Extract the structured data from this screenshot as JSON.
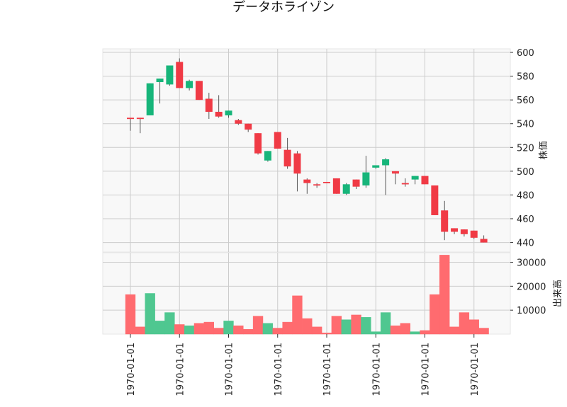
{
  "chart_data": {
    "type": "candlestick",
    "title": "データホライゾン",
    "grid": true,
    "x_tick_labels": [
      "1970-01-01",
      "1970-01-01",
      "1970-01-01",
      "1970-01-01",
      "1970-01-01",
      "1970-01-01",
      "1970-01-01",
      "1970-01-01"
    ],
    "x_tick_index": [
      0,
      5,
      10,
      15,
      20,
      25,
      30,
      35
    ],
    "price_panel": {
      "ylabel": "株価",
      "ylim": [
        432,
        603
      ],
      "yticks": [
        440,
        460,
        480,
        500,
        520,
        540,
        560,
        580,
        600
      ]
    },
    "volume_panel": {
      "ylabel": "出来高",
      "ylim": [
        0,
        34000
      ],
      "yticks": [
        10000,
        20000,
        30000
      ],
      "ytick_labels": [
        "10000",
        "20000",
        "30000"
      ]
    },
    "colors": {
      "up": "#17b57a",
      "down": "#f03a45",
      "volume_up": "#4fc790",
      "volume_down": "#ff6b6f"
    },
    "candles": [
      {
        "open": 545,
        "high": 545,
        "low": 534,
        "close": 544,
        "volume": 16500
      },
      {
        "open": 545,
        "high": 545,
        "low": 532,
        "close": 544,
        "volume": 3000
      },
      {
        "open": 547,
        "high": 574,
        "low": 547,
        "close": 574,
        "volume": 17000
      },
      {
        "open": 575,
        "high": 578,
        "low": 557,
        "close": 578,
        "volume": 5500
      },
      {
        "open": 573,
        "high": 589,
        "low": 572,
        "close": 589,
        "volume": 9000
      },
      {
        "open": 592,
        "high": 595,
        "low": 570,
        "close": 570,
        "volume": 4000
      },
      {
        "open": 570,
        "high": 577,
        "low": 568,
        "close": 576,
        "volume": 3500
      },
      {
        "open": 576,
        "high": 576,
        "low": 560,
        "close": 560,
        "volume": 4500
      },
      {
        "open": 561,
        "high": 566,
        "low": 544,
        "close": 550,
        "volume": 5000
      },
      {
        "open": 550,
        "high": 564,
        "low": 545,
        "close": 546,
        "volume": 2500
      },
      {
        "open": 547,
        "high": 551,
        "low": 545,
        "close": 551,
        "volume": 5500
      },
      {
        "open": 543,
        "high": 544,
        "low": 539,
        "close": 540,
        "volume": 3500
      },
      {
        "open": 540,
        "high": 540,
        "low": 533,
        "close": 535,
        "volume": 2000
      },
      {
        "open": 532,
        "high": 532,
        "low": 514,
        "close": 515,
        "volume": 7500
      },
      {
        "open": 509,
        "high": 517,
        "low": 508,
        "close": 517,
        "volume": 4500
      },
      {
        "open": 533,
        "high": 533,
        "low": 519,
        "close": 519,
        "volume": 2500
      },
      {
        "open": 518,
        "high": 528,
        "low": 502,
        "close": 504,
        "volume": 5000
      },
      {
        "open": 515,
        "high": 517,
        "low": 483,
        "close": 498,
        "volume": 16000
      },
      {
        "open": 493,
        "high": 494,
        "low": 481,
        "close": 490,
        "volume": 6500
      },
      {
        "open": 489,
        "high": 490,
        "low": 486,
        "close": 488,
        "volume": 3000
      },
      {
        "open": 491,
        "high": 491,
        "low": 490,
        "close": 490,
        "volume": 500
      },
      {
        "open": 494,
        "high": 494,
        "low": 481,
        "close": 481,
        "volume": 7500
      },
      {
        "open": 481,
        "high": 490,
        "low": 480,
        "close": 489,
        "volume": 6000
      },
      {
        "open": 493,
        "high": 493,
        "low": 485,
        "close": 487,
        "volume": 8000
      },
      {
        "open": 488,
        "high": 513,
        "low": 486,
        "close": 499,
        "volume": 7000
      },
      {
        "open": 503,
        "high": 505,
        "low": 502,
        "close": 505,
        "volume": 1000
      },
      {
        "open": 505,
        "high": 511,
        "low": 480,
        "close": 510,
        "volume": 9000
      },
      {
        "open": 500,
        "high": 500,
        "low": 489,
        "close": 498,
        "volume": 3500
      },
      {
        "open": 490,
        "high": 494,
        "low": 487,
        "close": 489,
        "volume": 4500
      },
      {
        "open": 493,
        "high": 496,
        "low": 489,
        "close": 496,
        "volume": 1000
      },
      {
        "open": 496,
        "high": 496,
        "low": 489,
        "close": 489,
        "volume": 1500
      },
      {
        "open": 488,
        "high": 488,
        "low": 463,
        "close": 463,
        "volume": 16500
      },
      {
        "open": 467,
        "high": 475,
        "low": 442,
        "close": 449,
        "volume": 33000
      },
      {
        "open": 452,
        "high": 452,
        "low": 447,
        "close": 449,
        "volume": 3000
      },
      {
        "open": 451,
        "high": 451,
        "low": 445,
        "close": 447,
        "volume": 9000
      },
      {
        "open": 450,
        "high": 450,
        "low": 443,
        "close": 444,
        "volume": 6000
      },
      {
        "open": 443,
        "high": 446,
        "low": 440,
        "close": 440,
        "volume": 2500
      }
    ]
  }
}
